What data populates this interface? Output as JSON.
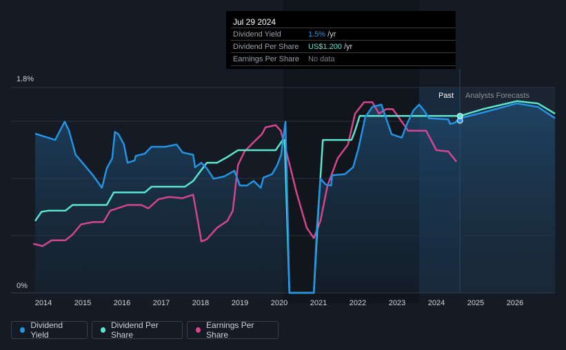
{
  "tooltip": {
    "date": "Jul 29 2024",
    "rows": [
      {
        "label": "Dividend Yield",
        "value": "1.5%",
        "unit": " /yr",
        "color": "#2394e6"
      },
      {
        "label": "Dividend Per Share",
        "value": "US$1.200",
        "unit": " /yr",
        "color": "#5ce6cf"
      },
      {
        "label": "Earnings Per Share",
        "value": "No data",
        "unit": "",
        "color": "#7a7f86"
      }
    ]
  },
  "chart_data": {
    "type": "line",
    "ylim": [
      0,
      1.8
    ],
    "xlim": [
      2013.6,
      2027.02
    ],
    "y_ticks": [
      "0%",
      "1.8%"
    ],
    "x_ticks": [
      "2014",
      "2015",
      "2016",
      "2017",
      "2018",
      "2019",
      "2020",
      "2021",
      "2022",
      "2023",
      "2024",
      "2025",
      "2026"
    ],
    "region_labels": {
      "past": "Past",
      "forecast": "Analysts Forecasts"
    },
    "past_band": [
      2023.56,
      2024.6
    ],
    "forecast_start": 2024.6,
    "series": [
      {
        "name": "Dividend Yield",
        "color": "#2394e6",
        "points": [
          [
            2013.79,
            1.395
          ],
          [
            2014.3,
            1.34
          ],
          [
            2014.54,
            1.5
          ],
          [
            2014.65,
            1.42
          ],
          [
            2014.82,
            1.21
          ],
          [
            2015.26,
            1.03
          ],
          [
            2015.49,
            0.92
          ],
          [
            2015.61,
            1.09
          ],
          [
            2015.75,
            1.18
          ],
          [
            2015.82,
            1.41
          ],
          [
            2015.91,
            1.39
          ],
          [
            2016.05,
            1.3
          ],
          [
            2016.14,
            1.14
          ],
          [
            2016.32,
            1.16
          ],
          [
            2016.35,
            1.2
          ],
          [
            2016.58,
            1.22
          ],
          [
            2016.75,
            1.28
          ],
          [
            2017.11,
            1.28
          ],
          [
            2017.39,
            1.3
          ],
          [
            2017.54,
            1.23
          ],
          [
            2017.81,
            1.21
          ],
          [
            2017.86,
            1.1
          ],
          [
            2018.02,
            1.14
          ],
          [
            2018.16,
            1.09
          ],
          [
            2018.33,
            1.0
          ],
          [
            2018.6,
            1.02
          ],
          [
            2018.86,
            1.07
          ],
          [
            2019.0,
            0.94
          ],
          [
            2019.18,
            0.94
          ],
          [
            2019.35,
            0.98
          ],
          [
            2019.53,
            0.92
          ],
          [
            2019.6,
            1.01
          ],
          [
            2019.82,
            1.04
          ],
          [
            2019.95,
            1.12
          ],
          [
            2020.05,
            1.21
          ],
          [
            2020.16,
            1.5
          ],
          [
            2020.21,
            0.75
          ],
          [
            2020.26,
            0
          ],
          [
            2020.88,
            0
          ],
          [
            2020.96,
            0.57
          ],
          [
            2021.05,
            1.0
          ],
          [
            2021.18,
            0.95
          ],
          [
            2021.32,
            0.94
          ],
          [
            2021.35,
            1.03
          ],
          [
            2021.67,
            1.04
          ],
          [
            2021.88,
            1.1
          ],
          [
            2022.02,
            1.27
          ],
          [
            2022.19,
            1.54
          ],
          [
            2022.37,
            1.63
          ],
          [
            2022.6,
            1.65
          ],
          [
            2022.72,
            1.53
          ],
          [
            2022.86,
            1.39
          ],
          [
            2023.12,
            1.36
          ],
          [
            2023.25,
            1.48
          ],
          [
            2023.42,
            1.6
          ],
          [
            2023.56,
            1.65
          ],
          [
            2023.68,
            1.6
          ],
          [
            2023.81,
            1.53
          ],
          [
            2024.3,
            1.52
          ],
          [
            2024.35,
            1.48
          ],
          [
            2024.47,
            1.49
          ],
          [
            2024.6,
            1.53
          ],
          [
            2025.18,
            1.58
          ],
          [
            2026.05,
            1.66
          ],
          [
            2026.58,
            1.63
          ],
          [
            2027.02,
            1.53
          ]
        ]
      },
      {
        "name": "Dividend Per Share",
        "color": "#5ce6cf",
        "points": [
          [
            2013.79,
            0.63
          ],
          [
            2013.95,
            0.71
          ],
          [
            2014.12,
            0.72
          ],
          [
            2014.56,
            0.72
          ],
          [
            2014.74,
            0.77
          ],
          [
            2015.61,
            0.77
          ],
          [
            2015.79,
            0.88
          ],
          [
            2016.58,
            0.88
          ],
          [
            2016.75,
            0.93
          ],
          [
            2017.6,
            0.93
          ],
          [
            2017.81,
            0.98
          ],
          [
            2017.98,
            1.06
          ],
          [
            2018.16,
            1.14
          ],
          [
            2018.42,
            1.14
          ],
          [
            2018.68,
            1.19
          ],
          [
            2018.95,
            1.25
          ],
          [
            2019.91,
            1.25
          ],
          [
            2020.09,
            1.34
          ],
          [
            2020.14,
            1.34
          ],
          [
            2020.26,
            0
          ],
          [
            2020.88,
            0
          ],
          [
            2021.0,
            0.75
          ],
          [
            2021.11,
            1.34
          ],
          [
            2021.84,
            1.34
          ],
          [
            2021.93,
            1.42
          ],
          [
            2022.05,
            1.55
          ],
          [
            2024.6,
            1.55
          ],
          [
            2025.18,
            1.61
          ],
          [
            2026.05,
            1.68
          ],
          [
            2026.58,
            1.66
          ],
          [
            2027.02,
            1.57
          ]
        ]
      },
      {
        "name": "Earnings Per Share",
        "color": "#d6468f",
        "points": [
          [
            2013.74,
            0.43
          ],
          [
            2013.98,
            0.41
          ],
          [
            2014.21,
            0.46
          ],
          [
            2014.56,
            0.46
          ],
          [
            2014.74,
            0.51
          ],
          [
            2014.96,
            0.6
          ],
          [
            2015.26,
            0.62
          ],
          [
            2015.53,
            0.62
          ],
          [
            2015.7,
            0.72
          ],
          [
            2016.14,
            0.77
          ],
          [
            2016.49,
            0.77
          ],
          [
            2016.67,
            0.74
          ],
          [
            2016.93,
            0.82
          ],
          [
            2017.19,
            0.84
          ],
          [
            2017.54,
            0.83
          ],
          [
            2017.81,
            0.86
          ],
          [
            2017.93,
            0.63
          ],
          [
            2018.02,
            0.45
          ],
          [
            2018.16,
            0.47
          ],
          [
            2018.42,
            0.57
          ],
          [
            2018.68,
            0.63
          ],
          [
            2018.82,
            0.72
          ],
          [
            2018.95,
            1.12
          ],
          [
            2019.12,
            1.24
          ],
          [
            2019.35,
            1.32
          ],
          [
            2019.56,
            1.39
          ],
          [
            2019.65,
            1.45
          ],
          [
            2019.91,
            1.47
          ],
          [
            2020.04,
            1.42
          ],
          [
            2020.18,
            1.24
          ],
          [
            2020.44,
            0.88
          ],
          [
            2020.7,
            0.57
          ],
          [
            2020.88,
            0.48
          ],
          [
            2021.05,
            0.63
          ],
          [
            2021.23,
            0.94
          ],
          [
            2021.49,
            1.18
          ],
          [
            2021.75,
            1.3
          ],
          [
            2021.93,
            1.57
          ],
          [
            2022.16,
            1.67
          ],
          [
            2022.37,
            1.67
          ],
          [
            2022.54,
            1.57
          ],
          [
            2022.72,
            1.61
          ],
          [
            2022.89,
            1.61
          ],
          [
            2023.16,
            1.48
          ],
          [
            2023.28,
            1.42
          ],
          [
            2023.74,
            1.42
          ],
          [
            2024.0,
            1.25
          ],
          [
            2024.3,
            1.24
          ],
          [
            2024.51,
            1.15
          ]
        ]
      }
    ]
  },
  "legend": [
    {
      "label": "Dividend Yield",
      "color": "#2394e6"
    },
    {
      "label": "Dividend Per Share",
      "color": "#5ce6cf"
    },
    {
      "label": "Earnings Per Share",
      "color": "#d6468f"
    }
  ]
}
